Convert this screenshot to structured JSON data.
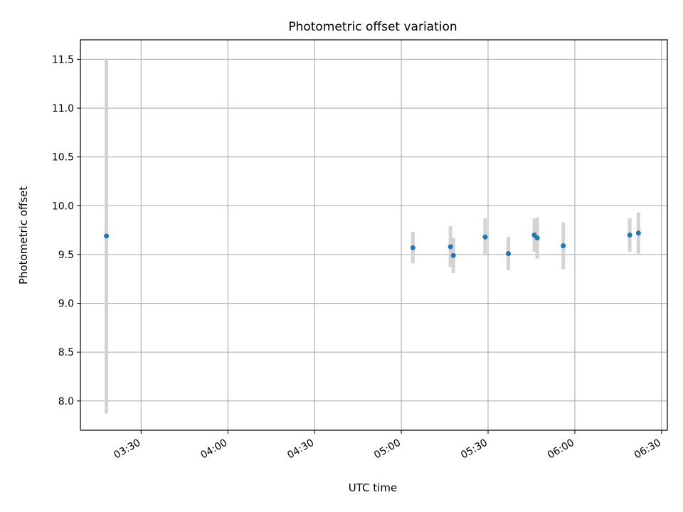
{
  "chart_data": {
    "type": "scatter",
    "title": "Photometric offset variation",
    "xlabel": "UTC time",
    "ylabel": "Photometric offset",
    "xlim": [
      "03:09",
      "06:32"
    ],
    "ylim": [
      7.7,
      11.7
    ],
    "x_ticks": [
      "03:30",
      "04:00",
      "04:30",
      "05:00",
      "05:30",
      "06:00",
      "06:30"
    ],
    "y_ticks": [
      8.0,
      8.5,
      9.0,
      9.5,
      10.0,
      10.5,
      11.0,
      11.5
    ],
    "grid": true,
    "marker_color": "#1f77b4",
    "errorbar_color": "#d3d3d3",
    "points": [
      {
        "time": "03:18",
        "y": 9.69,
        "err": 1.82
      },
      {
        "time": "05:04",
        "y": 9.57,
        "err": 0.16
      },
      {
        "time": "05:17",
        "y": 9.58,
        "err": 0.21
      },
      {
        "time": "05:18",
        "y": 9.49,
        "err": 0.18
      },
      {
        "time": "05:29",
        "y": 9.68,
        "err": 0.19
      },
      {
        "time": "05:37",
        "y": 9.51,
        "err": 0.17
      },
      {
        "time": "05:46",
        "y": 9.7,
        "err": 0.17
      },
      {
        "time": "05:47",
        "y": 9.67,
        "err": 0.21
      },
      {
        "time": "05:56",
        "y": 9.59,
        "err": 0.24
      },
      {
        "time": "06:19",
        "y": 9.7,
        "err": 0.17
      },
      {
        "time": "06:22",
        "y": 9.72,
        "err": 0.21
      }
    ]
  }
}
